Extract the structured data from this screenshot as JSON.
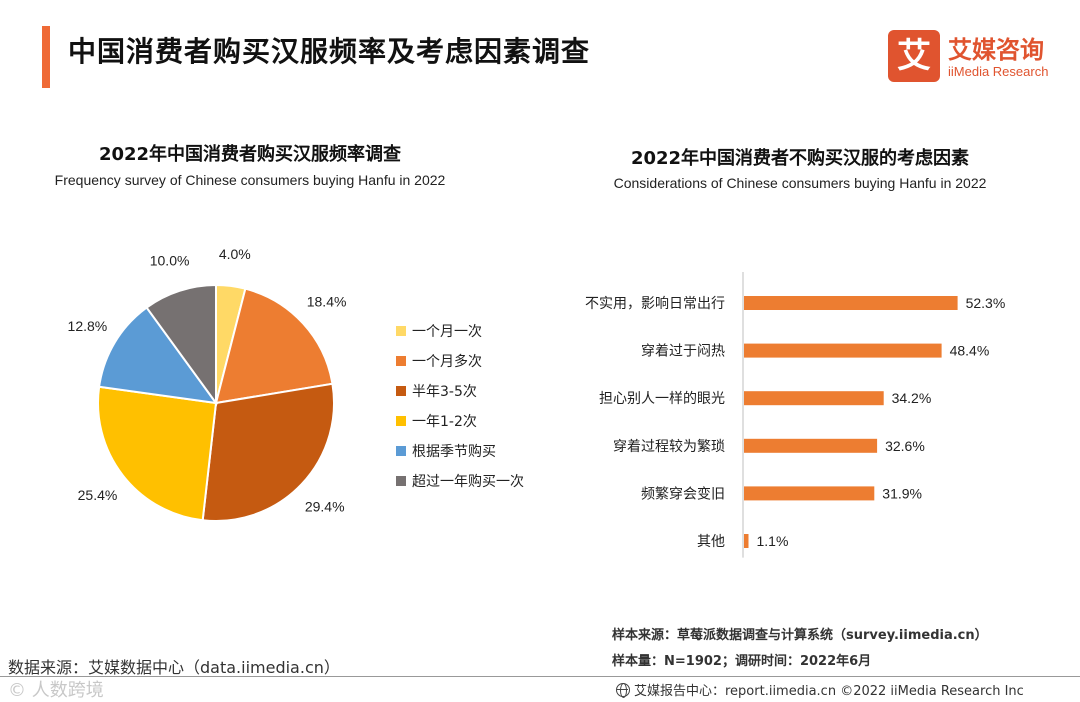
{
  "header": {
    "title": "中国消费者购买汉服频率及考虑因素调查",
    "logo_mark": "艾",
    "logo_cn": "艾媒咨询",
    "logo_en": "iiMedia Research"
  },
  "left_chart": {
    "title": "2022年中国消费者购买汉服频率调查",
    "subtitle": "Frequency survey of Chinese consumers buying Hanfu in 2022"
  },
  "right_chart": {
    "title": "2022年中国消费者不购买汉服的考虑因素",
    "subtitle": "Considerations of Chinese consumers buying Hanfu in 2022"
  },
  "chart_data": [
    {
      "type": "pie",
      "title": "2022年中国消费者购买汉服频率调查",
      "unit": "%",
      "legend_position": "right",
      "slices": [
        {
          "label": "一个月一次",
          "value": 4.0,
          "display": "4.0%",
          "color": "#ffd966"
        },
        {
          "label": "一个月多次",
          "value": 18.4,
          "display": "18.4%",
          "color": "#ed7d31"
        },
        {
          "label": "半年3-5次",
          "value": 29.4,
          "display": "29.4%",
          "color": "#c55a11"
        },
        {
          "label": "一年1-2次",
          "value": 25.4,
          "display": "25.4%",
          "color": "#ffc000"
        },
        {
          "label": "根据季节购买",
          "value": 12.8,
          "display": "12.8%",
          "color": "#5b9bd5"
        },
        {
          "label": "超过一年购买一次",
          "value": 10.0,
          "display": "10.0%",
          "color": "#767171"
        }
      ]
    },
    {
      "type": "bar",
      "orientation": "horizontal",
      "title": "2022年中国消费者不购买汉服的考虑因素",
      "unit": "%",
      "bar_color": "#ed7d31",
      "xlim": [
        0,
        60
      ],
      "categories": [
        "不实用，影响日常出行",
        "穿着过于闷热",
        "担心别人一样的眼光",
        "穿着过程较为繁琐",
        "频繁穿会变旧",
        "其他"
      ],
      "values": [
        52.3,
        48.4,
        34.2,
        32.6,
        31.9,
        1.1
      ],
      "value_labels": [
        "52.3%",
        "48.4%",
        "34.2%",
        "32.6%",
        "31.9%",
        "1.1%"
      ]
    }
  ],
  "notes": {
    "sample_source": "样本来源：草莓派数据调查与计算系统（survey.iimedia.cn）",
    "sample_size": "样本量：N=1902；调研时间：2022年6月",
    "data_source": "数据来源：艾媒数据中心（data.iimedia.cn）",
    "watermark": "© 人数跨境",
    "footer": "艾媒报告中心：report.iimedia.cn   ©2022  iiMedia Research  Inc"
  }
}
